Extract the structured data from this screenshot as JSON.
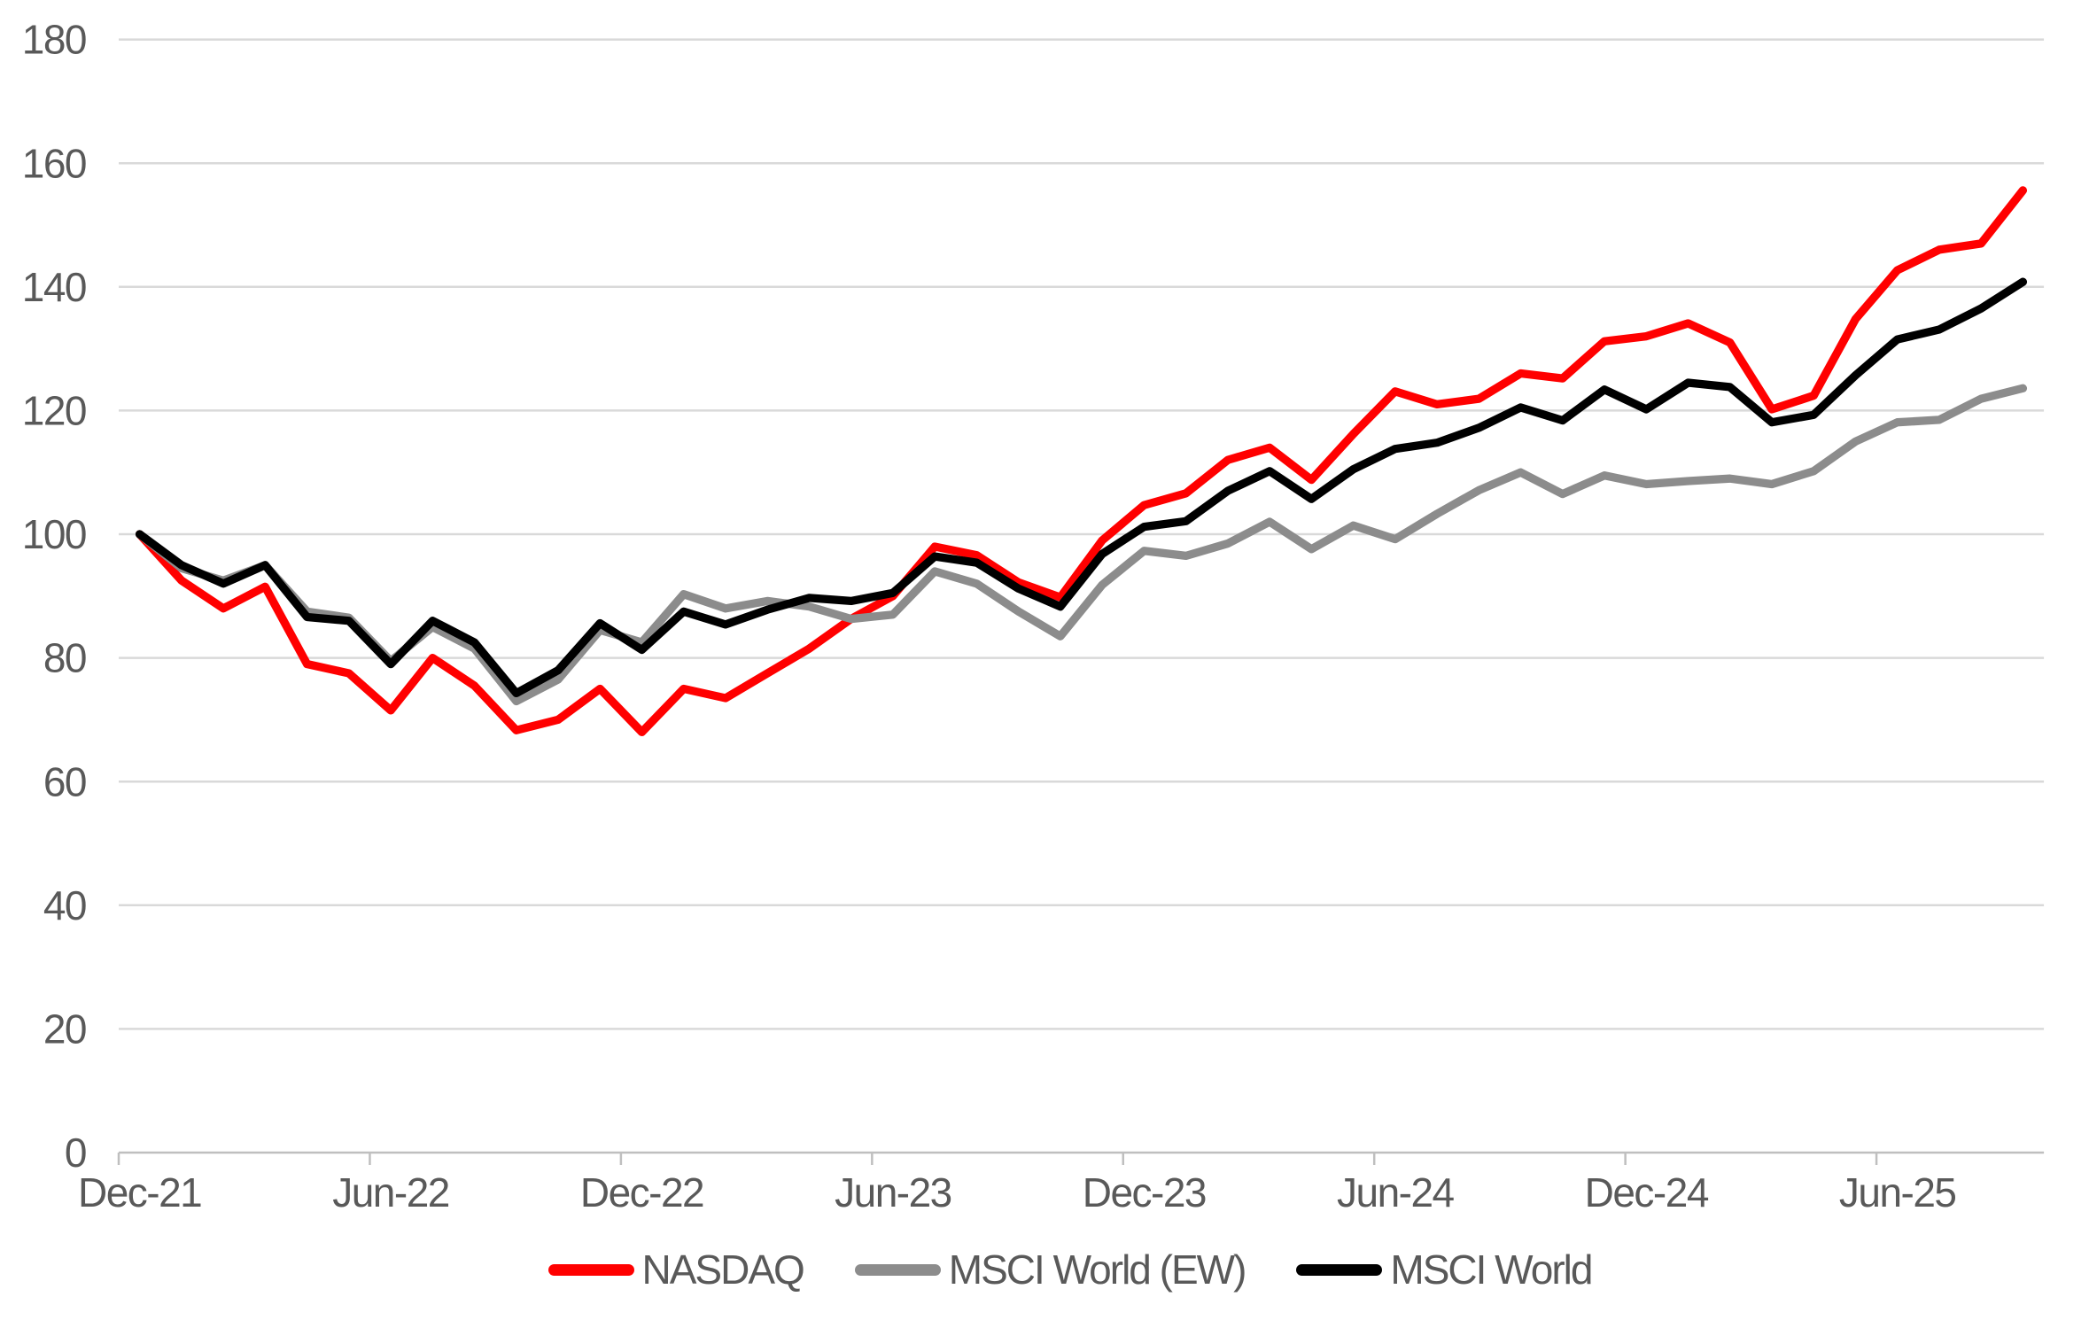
{
  "chart_data": {
    "type": "line",
    "title": "",
    "categories": [
      "Dec-21",
      "Jan-22",
      "Feb-22",
      "Mar-22",
      "Apr-22",
      "May-22",
      "Jun-22",
      "Jul-22",
      "Aug-22",
      "Sep-22",
      "Oct-22",
      "Nov-22",
      "Dec-22",
      "Jan-23",
      "Feb-23",
      "Mar-23",
      "Apr-23",
      "May-23",
      "Jun-23",
      "Jul-23",
      "Aug-23",
      "Sep-23",
      "Oct-23",
      "Nov-23",
      "Dec-23",
      "Jan-24",
      "Feb-24",
      "Mar-24",
      "Apr-24",
      "May-24",
      "Jun-24",
      "Jul-24",
      "Aug-24",
      "Sep-24",
      "Oct-24",
      "Nov-24",
      "Dec-24",
      "Jan-25",
      "Feb-25",
      "Mar-25",
      "Apr-25",
      "May-25",
      "Jun-25",
      "Jul-25",
      "Aug-25",
      "Sep-25"
    ],
    "x_tick_labels": [
      "Dec-21",
      "Jun-22",
      "Dec-22",
      "Jun-23",
      "Dec-23",
      "Jun-24",
      "Dec-24",
      "Jun-25"
    ],
    "x_tick_indices": [
      0,
      6,
      12,
      18,
      24,
      30,
      36,
      42
    ],
    "y_ticks": [
      0,
      20,
      40,
      60,
      80,
      100,
      120,
      140,
      160,
      180
    ],
    "ylim": [
      0,
      180
    ],
    "grid": "horizontal",
    "legend_position": "bottom-center",
    "series": [
      {
        "name": "NASDAQ",
        "color": "#FF0000",
        "values": [
          100,
          92.5,
          88,
          91.5,
          79,
          77.5,
          71.5,
          80,
          75.5,
          68.3,
          70,
          75,
          68,
          75,
          73.5,
          77.5,
          81.5,
          86.3,
          90,
          98,
          96.6,
          92.2,
          89.8,
          99,
          104.7,
          106.6,
          112,
          114,
          108.8,
          116.2,
          123.1,
          121,
          121.9,
          126,
          125.2,
          131.2,
          132,
          134.1,
          131,
          120.2,
          122.4,
          134.8,
          142.7,
          146,
          147,
          155.6
        ]
      },
      {
        "name": "MSCI World (EW)",
        "color": "#8C8C8C",
        "values": [
          100,
          94.5,
          92.5,
          95,
          87.5,
          86.5,
          79.5,
          85,
          81.5,
          73,
          76.5,
          84.5,
          82.5,
          90.3,
          88,
          89.2,
          88.3,
          86.3,
          87,
          94,
          92,
          87.5,
          83.5,
          91.8,
          97.3,
          96.5,
          98.5,
          102,
          97.6,
          101.4,
          99.2,
          103.3,
          107.1,
          110,
          106.5,
          109.5,
          108.1,
          108.6,
          109,
          108.1,
          110.2,
          115,
          118.1,
          118.5,
          121.9,
          123.6
        ]
      },
      {
        "name": "MSCI World",
        "color": "#000000",
        "values": [
          100,
          95,
          92,
          95,
          86.6,
          86,
          79,
          86,
          82.5,
          74.3,
          78,
          85.6,
          81.3,
          87.5,
          85.4,
          87.8,
          89.7,
          89.2,
          90.5,
          96.4,
          95.4,
          91.2,
          88.3,
          96.8,
          101.2,
          102.1,
          107,
          110.2,
          105.7,
          110.5,
          113.8,
          114.8,
          117.2,
          120.5,
          118.4,
          123.4,
          120.2,
          124.5,
          123.8,
          118.1,
          119.3,
          125.7,
          131.5,
          133.1,
          136.5,
          140.8
        ]
      }
    ]
  },
  "style": {
    "axis_text_color": "#595959",
    "gridline_color": "#D9D9D9",
    "axis_line_color": "#BFBFBF",
    "background": "#FFFFFF",
    "line_width": 9.3
  }
}
